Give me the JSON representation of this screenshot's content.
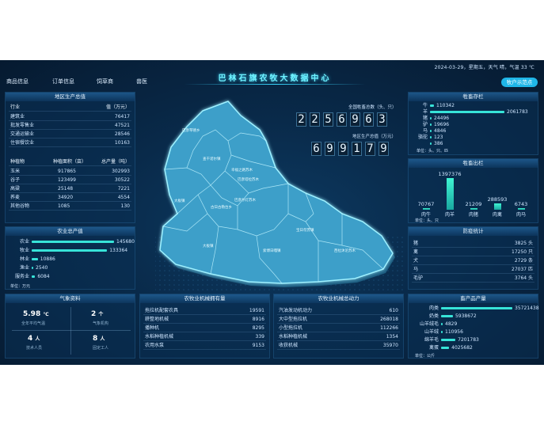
{
  "header": {
    "title": "巴林石旗农牧大数据中心",
    "datetime": "2024-03-29，星期五，天气 晴，气温 33 ℃",
    "demo_button": "牧户示范点"
  },
  "nav": [
    "商品信息",
    "订单信息",
    "饲草商",
    "兽医"
  ],
  "region_gdp": {
    "title": "地区生产总值",
    "header": [
      "行业",
      "值（万元）"
    ],
    "rows": [
      [
        "建筑业",
        "76417"
      ],
      [
        "批发零售业",
        "47521"
      ],
      [
        "交通运输业",
        "28546"
      ],
      [
        "住宿餐饮业",
        "10163"
      ]
    ]
  },
  "planting": {
    "header": [
      "种植物",
      "种植面积（亩）",
      "总产量（吨）"
    ],
    "rows": [
      [
        "玉米",
        "917865",
        "302993"
      ],
      [
        "谷子",
        "123499",
        "30522"
      ],
      [
        "高粱",
        "25148",
        "7221"
      ],
      [
        "荞麦",
        "34920",
        "4554"
      ],
      [
        "其他谷物",
        "1085",
        "130"
      ]
    ]
  },
  "agri_output": {
    "title": "农业总产值",
    "unit": "单位：万元",
    "items": [
      {
        "label": "农业",
        "value": 145680
      },
      {
        "label": "牧业",
        "value": 133364
      },
      {
        "label": "林业",
        "value": 10886
      },
      {
        "label": "渔业",
        "value": 2540
      },
      {
        "label": "服务业",
        "value": 6084
      }
    ]
  },
  "weather": {
    "title": "气象资料",
    "temp_value": "5.98",
    "temp_unit": "℃",
    "temp_label": "全年平均气温",
    "station_value": "2",
    "station_unit": "个",
    "station_label": "气象机构",
    "tech_value": "4",
    "tech_unit": "人",
    "tech_label": "技术人员",
    "staff_value": "8",
    "staff_unit": "人",
    "staff_label": "固定工人"
  },
  "center_stats": {
    "livestock_label": "全国牲畜总数（头、只）",
    "livestock_digits": [
      "2",
      "2",
      "5",
      "6",
      "9",
      "6",
      "3"
    ],
    "gdp_label": "地区生产总值（万元）",
    "gdp_digits": [
      "6",
      "9",
      "9",
      "1",
      "7",
      "9"
    ]
  },
  "map_labels": [
    "巴彦琴德乡",
    "查干诺尔镇",
    "巴彦塔拉苏木",
    "幸福之路苏木",
    "大板镇",
    "巴彦尔灯苏木",
    "古日古勒台乡",
    "宝日勿苏镇",
    "大板镇",
    "西拉沐沦苏木",
    "索博日嘎镇"
  ],
  "livestock_stock": {
    "title": "牲畜存栏",
    "unit": "单位：头、只、匹",
    "items": [
      {
        "label": "牛",
        "value": 110342
      },
      {
        "label": "羊",
        "value": 2061783
      },
      {
        "label": "猪",
        "value": 24496
      },
      {
        "label": "驴",
        "value": 19696
      },
      {
        "label": "马",
        "value": 4846
      },
      {
        "label": "骆驼",
        "value": 123
      },
      {
        "label": "",
        "value": 386
      }
    ]
  },
  "livestock_out": {
    "title": "牲畜出栏",
    "unit": "单位：头、只",
    "items": [
      {
        "label": "肉牛",
        "value": 70767
      },
      {
        "label": "肉羊",
        "value": 1397376
      },
      {
        "label": "肉猪",
        "value": 21209
      },
      {
        "label": "肉禽",
        "value": 288593
      },
      {
        "label": "肉马",
        "value": 6743
      }
    ]
  },
  "epidemic": {
    "title": "防疫统计",
    "rows": [
      [
        "猪",
        "3825 头"
      ],
      [
        "禽",
        "17250 只"
      ],
      [
        "犬",
        "2729 条"
      ],
      [
        "马",
        "27037 匹"
      ],
      [
        "毛驴",
        "3764 头"
      ]
    ]
  },
  "machinery": {
    "title": "农牧业机械拥有量",
    "rows": [
      [
        "拖拉机配套农具",
        "19591"
      ],
      [
        "耕整地机械",
        "8916"
      ],
      [
        "播种机",
        "8295"
      ],
      [
        "水稻种植机械",
        "339"
      ],
      [
        "农用水泵",
        "9153"
      ]
    ]
  },
  "power": {
    "title": "农牧业机械总动力",
    "rows": [
      [
        "汽油发动机动力",
        "610"
      ],
      [
        "大中型拖拉机",
        "268018"
      ],
      [
        "小型拖拉机",
        "112266"
      ],
      [
        "水稻种植机械",
        "1354"
      ],
      [
        "收获机械",
        "35970"
      ]
    ]
  },
  "products": {
    "title": "畜产品产量",
    "unit": "单位：公斤",
    "items": [
      {
        "label": "肉类",
        "value": 35721438
      },
      {
        "label": "奶类",
        "value": 5938672
      },
      {
        "label": "山羊绒毛",
        "value": 4829
      },
      {
        "label": "山羊绒",
        "value": 110956
      },
      {
        "label": "绵羊毛",
        "value": 7201783
      },
      {
        "label": "禽蛋",
        "value": 4025682
      }
    ]
  },
  "colors": {
    "accent": "#37e3d8",
    "title": "#6ff3ff",
    "map_fill": "#3e9fc9",
    "button": "#1fb6e8"
  }
}
